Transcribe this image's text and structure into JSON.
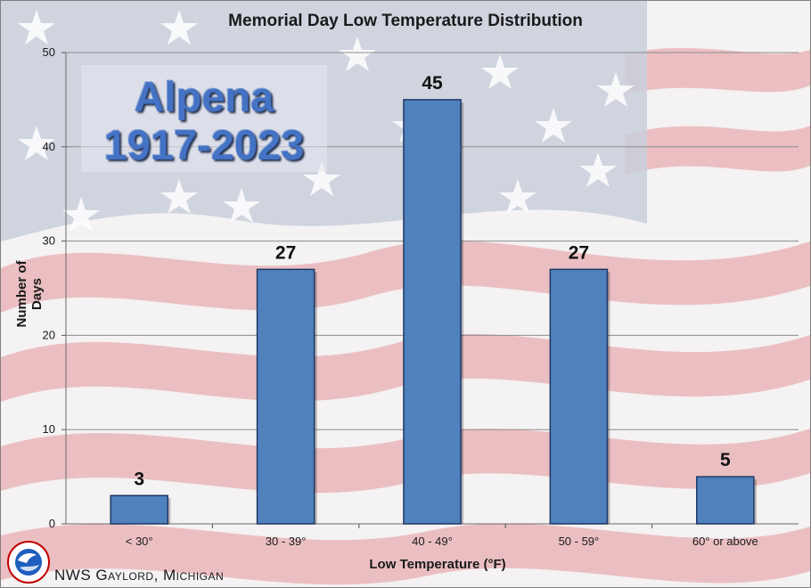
{
  "title": "Memorial Day Low Temperature Distribution",
  "station": {
    "name": "Alpena",
    "years": "1917-2023"
  },
  "credit": "NWS Gaylord, Michigan",
  "logo": {
    "icon": "nws-logo-icon"
  },
  "colors": {
    "bar": "#4f81bd",
    "bar_border": "#1f3864",
    "grid": "#8c8c8c"
  },
  "chart_data": {
    "type": "bar",
    "categories": [
      "< 30°",
      "30 - 39°",
      "40 - 49°",
      "50 - 59°",
      "60° or above"
    ],
    "values": [
      3,
      27,
      45,
      27,
      5
    ],
    "title": "Memorial Day Low Temperature Distribution",
    "xlabel": "Low Temperature (°F)",
    "ylabel": "Number of Days",
    "ylim": [
      0,
      50
    ],
    "yticks": [
      0,
      10,
      20,
      30,
      40,
      50
    ],
    "grid": true,
    "legend": "none"
  }
}
